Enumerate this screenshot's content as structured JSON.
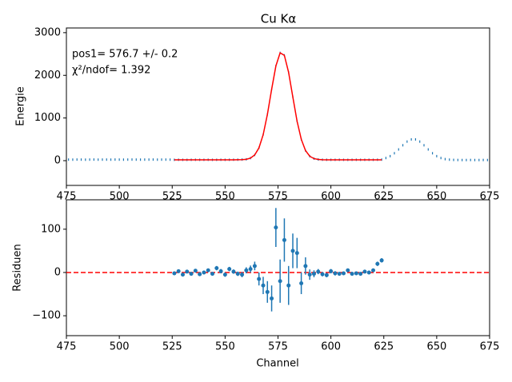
{
  "chart_data": [
    {
      "type": "line",
      "title": "Cu Kα",
      "ylabel": "Energie",
      "annotations": [
        "pos1= 576.7 +/- 0.2",
        "χ²/ndof= 1.392"
      ],
      "xlim": [
        475,
        675
      ],
      "xticks": [
        475,
        500,
        525,
        550,
        575,
        600,
        625,
        650,
        675
      ],
      "ylim": [
        -580,
        3110
      ],
      "yticks": [
        0,
        1000,
        2000,
        3000
      ],
      "series": [
        {
          "style": "markers",
          "color": "#1f77b4",
          "x": [
            476,
            478,
            480,
            482,
            484,
            486,
            488,
            490,
            492,
            494,
            496,
            498,
            500,
            502,
            504,
            506,
            508,
            510,
            512,
            514,
            516,
            518,
            520,
            522,
            524,
            526,
            528,
            530,
            532,
            534,
            536,
            538,
            540,
            542,
            544,
            546,
            548,
            550,
            552,
            554,
            556,
            558,
            560,
            562,
            564,
            566,
            568,
            570,
            572,
            574,
            576,
            578,
            580,
            582,
            584,
            586,
            588,
            590,
            592,
            594,
            596,
            598,
            600,
            602,
            604,
            606,
            608,
            610,
            612,
            614,
            616,
            618,
            620,
            622,
            624,
            626,
            628,
            630,
            632,
            634,
            636,
            638,
            640,
            642,
            644,
            646,
            648,
            650,
            652,
            654,
            656,
            658,
            660,
            662,
            664,
            666,
            668,
            670,
            672,
            674
          ],
          "values": [
            25,
            24,
            26,
            25,
            23,
            25,
            26,
            24,
            25,
            25,
            24,
            26,
            25,
            24,
            25,
            26,
            25,
            24,
            25,
            25,
            26,
            24,
            25,
            25,
            24,
            20,
            21,
            20,
            19,
            20,
            21,
            20,
            20,
            21,
            20,
            20,
            21,
            20,
            21,
            22,
            23,
            26,
            32,
            60,
            134,
            300,
            610,
            1087,
            1674,
            2219,
            2527,
            2469,
            2072,
            1495,
            928,
            500,
            237,
            104,
            48,
            28,
            22,
            21,
            20,
            20,
            21,
            20,
            19,
            20,
            21,
            20,
            20,
            21,
            20,
            22,
            25,
            62,
            106,
            174,
            263,
            361,
            447,
            498,
            498,
            447,
            361,
            263,
            174,
            106,
            62,
            36,
            24,
            18,
            16,
            15,
            15,
            16,
            15,
            15,
            16,
            15
          ]
        },
        {
          "style": "line",
          "color": "#ff0000",
          "x": [
            526,
            528,
            530,
            532,
            534,
            536,
            538,
            540,
            542,
            544,
            546,
            548,
            550,
            552,
            554,
            556,
            558,
            560,
            562,
            564,
            566,
            568,
            570,
            572,
            574,
            576,
            578,
            580,
            582,
            584,
            586,
            588,
            590,
            592,
            594,
            596,
            598,
            600,
            602,
            604,
            606,
            608,
            610,
            612,
            614,
            616,
            618,
            620,
            622,
            624
          ],
          "values": [
            20,
            20,
            20,
            20,
            20,
            20,
            20,
            20,
            20,
            20,
            20,
            20,
            20,
            20,
            20,
            21,
            23,
            32,
            60,
            134,
            300,
            610,
            1087,
            1674,
            2219,
            2527,
            2469,
            2072,
            1495,
            928,
            500,
            237,
            104,
            48,
            28,
            22,
            20,
            20,
            20,
            20,
            20,
            20,
            20,
            20,
            20,
            20,
            20,
            20,
            20,
            20
          ]
        }
      ]
    },
    {
      "type": "errorbar",
      "xlabel": "Channel",
      "ylabel": "Residuen",
      "xlim": [
        475,
        675
      ],
      "xticks": [
        475,
        500,
        525,
        550,
        575,
        600,
        625,
        650,
        675
      ],
      "ylim": [
        -146,
        168
      ],
      "yticks": [
        {
          "value": -100,
          "label": "−100"
        },
        0,
        100
      ],
      "reference_line": {
        "value": 0,
        "color": "#ff0000"
      },
      "series": [
        {
          "color": "#1f77b4",
          "x": [
            526,
            528,
            530,
            532,
            534,
            536,
            538,
            540,
            542,
            544,
            546,
            548,
            550,
            552,
            554,
            556,
            558,
            560,
            562,
            564,
            566,
            568,
            570,
            572,
            574,
            576,
            578,
            580,
            582,
            584,
            586,
            588,
            590,
            592,
            594,
            596,
            598,
            600,
            602,
            604,
            606,
            608,
            610,
            612,
            614,
            616,
            618,
            620,
            622,
            624
          ],
          "values": [
            -2,
            3,
            -5,
            2,
            -3,
            4,
            -4,
            0,
            5,
            -3,
            10,
            3,
            -5,
            8,
            2,
            -3,
            -5,
            5,
            8,
            15,
            -15,
            -30,
            -45,
            -60,
            104,
            -20,
            75,
            -30,
            50,
            45,
            -25,
            15,
            -5,
            -3,
            2,
            -4,
            -6,
            3,
            -2,
            -3,
            -2,
            5,
            -3,
            -2,
            -3,
            2,
            0,
            5,
            20,
            28
          ],
          "errors": [
            4,
            4,
            4,
            4,
            4,
            4,
            4,
            4,
            4,
            4,
            5,
            5,
            5,
            5,
            5,
            5,
            6,
            7,
            8,
            10,
            15,
            20,
            25,
            30,
            45,
            50,
            50,
            45,
            40,
            35,
            25,
            20,
            12,
            8,
            6,
            5,
            5,
            5,
            5,
            4,
            4,
            4,
            4,
            4,
            4,
            4,
            4,
            4,
            5,
            5
          ]
        }
      ]
    }
  ]
}
